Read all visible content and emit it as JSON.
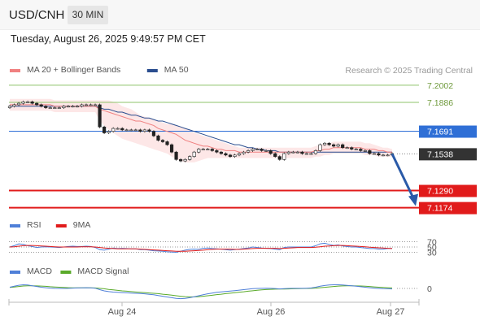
{
  "header": {
    "symbol": "USD/CNH",
    "timeframe": "30 MIN",
    "timestamp": "Tuesday, August 26, 2025 9:49:57 PM CET"
  },
  "colors": {
    "ma20": "#f08080",
    "ma50": "#2a4d8f",
    "bollinger_band": "#fde3e3",
    "green_level": "#8dc36a",
    "blue_level": "#2f6fd6",
    "red_level": "#e11b1b",
    "price_tag": "#333333",
    "rsi": "#4f7fd8",
    "rsi_ma": "#e11b1b",
    "macd": "#4f7fd8",
    "macd_signal": "#5aaa2a",
    "arrow": "#2a5aa8"
  },
  "chart_data": [
    {
      "type": "line",
      "name": "price",
      "legend": [
        "MA 20 + Bollinger Bands",
        "MA 50"
      ],
      "copyright": "Research © 2025 Trading Central",
      "x_ticks": [
        "Aug 24",
        "Aug 26",
        "Aug 27"
      ],
      "ylim": [
        7.115,
        7.204
      ],
      "levels": [
        {
          "value": 7.2002,
          "label": "7.2002",
          "kind": "green"
        },
        {
          "value": 7.1886,
          "label": "7.1886",
          "kind": "green"
        },
        {
          "value": 7.1691,
          "label": "7.1691",
          "kind": "blue"
        },
        {
          "value": 7.1538,
          "label": "7.1538",
          "kind": "current"
        },
        {
          "value": 7.129,
          "label": "7.1290",
          "kind": "red"
        },
        {
          "value": 7.1174,
          "label": "7.1174",
          "kind": "red"
        }
      ],
      "close": [
        7.186,
        7.187,
        7.188,
        7.189,
        7.189,
        7.188,
        7.187,
        7.186,
        7.185,
        7.185,
        7.185,
        7.185,
        7.186,
        7.186,
        7.186,
        7.186,
        7.187,
        7.187,
        7.187,
        7.187,
        7.172,
        7.168,
        7.169,
        7.171,
        7.171,
        7.17,
        7.17,
        7.17,
        7.17,
        7.169,
        7.17,
        7.169,
        7.166,
        7.163,
        7.162,
        7.16,
        7.155,
        7.15,
        7.149,
        7.15,
        7.152,
        7.155,
        7.157,
        7.157,
        7.157,
        7.156,
        7.155,
        7.154,
        7.153,
        7.152,
        7.153,
        7.154,
        7.155,
        7.156,
        7.157,
        7.157,
        7.156,
        7.156,
        7.154,
        7.152,
        7.15,
        7.154,
        7.155,
        7.155,
        7.155,
        7.154,
        7.154,
        7.154,
        7.156,
        7.16,
        7.161,
        7.16,
        7.159,
        7.16,
        7.158,
        7.158,
        7.157,
        7.157,
        7.156,
        7.156,
        7.154,
        7.154,
        7.153,
        7.153,
        7.153,
        7.154
      ],
      "ma20": [
        7.187,
        7.187,
        7.187,
        7.187,
        7.187,
        7.187,
        7.187,
        7.187,
        7.187,
        7.187,
        7.186,
        7.186,
        7.186,
        7.186,
        7.186,
        7.186,
        7.186,
        7.186,
        7.186,
        7.186,
        7.184,
        7.183,
        7.182,
        7.181,
        7.18,
        7.179,
        7.178,
        7.177,
        7.176,
        7.176,
        7.175,
        7.174,
        7.173,
        7.171,
        7.17,
        7.169,
        7.168,
        7.167,
        7.165,
        7.163,
        7.162,
        7.161,
        7.16,
        7.159,
        7.159,
        7.158,
        7.157,
        7.157,
        7.156,
        7.156,
        7.156,
        7.155,
        7.155,
        7.155,
        7.155,
        7.155,
        7.155,
        7.155,
        7.155,
        7.155,
        7.155,
        7.155,
        7.155,
        7.155,
        7.155,
        7.155,
        7.155,
        7.155,
        7.156,
        7.156,
        7.157,
        7.157,
        7.158,
        7.158,
        7.158,
        7.158,
        7.158,
        7.158,
        7.158,
        7.157,
        7.157,
        7.157,
        7.156,
        7.156,
        7.155,
        7.155
      ],
      "bb_upper": [
        7.191,
        7.191,
        7.191,
        7.191,
        7.191,
        7.191,
        7.191,
        7.191,
        7.191,
        7.191,
        7.19,
        7.19,
        7.19,
        7.19,
        7.19,
        7.19,
        7.19,
        7.19,
        7.19,
        7.19,
        7.19,
        7.19,
        7.19,
        7.189,
        7.188,
        7.186,
        7.185,
        7.184,
        7.182,
        7.18,
        7.179,
        7.178,
        7.177,
        7.176,
        7.175,
        7.174,
        7.174,
        7.173,
        7.172,
        7.171,
        7.17,
        7.168,
        7.167,
        7.166,
        7.165,
        7.164,
        7.163,
        7.162,
        7.161,
        7.16,
        7.159,
        7.158,
        7.158,
        7.158,
        7.158,
        7.158,
        7.158,
        7.158,
        7.158,
        7.158,
        7.158,
        7.158,
        7.158,
        7.158,
        7.158,
        7.158,
        7.158,
        7.158,
        7.159,
        7.16,
        7.161,
        7.161,
        7.162,
        7.162,
        7.162,
        7.162,
        7.162,
        7.162,
        7.162,
        7.161,
        7.161,
        7.16,
        7.159,
        7.158,
        7.158,
        7.157
      ],
      "bb_lower": [
        7.183,
        7.183,
        7.183,
        7.183,
        7.183,
        7.183,
        7.183,
        7.183,
        7.183,
        7.183,
        7.182,
        7.182,
        7.182,
        7.182,
        7.182,
        7.182,
        7.182,
        7.182,
        7.182,
        7.182,
        7.176,
        7.173,
        7.17,
        7.168,
        7.166,
        7.164,
        7.163,
        7.162,
        7.161,
        7.16,
        7.159,
        7.158,
        7.157,
        7.156,
        7.155,
        7.154,
        7.152,
        7.15,
        7.149,
        7.148,
        7.148,
        7.148,
        7.149,
        7.15,
        7.151,
        7.151,
        7.151,
        7.151,
        7.151,
        7.151,
        7.151,
        7.151,
        7.151,
        7.151,
        7.151,
        7.151,
        7.151,
        7.151,
        7.151,
        7.151,
        7.151,
        7.151,
        7.151,
        7.151,
        7.151,
        7.151,
        7.151,
        7.151,
        7.152,
        7.152,
        7.153,
        7.153,
        7.154,
        7.154,
        7.154,
        7.154,
        7.154,
        7.154,
        7.154,
        7.153,
        7.153,
        7.153,
        7.152,
        7.152,
        7.152,
        7.152
      ],
      "ma50": [
        7.186,
        7.186,
        7.186,
        7.186,
        7.186,
        7.186,
        7.186,
        7.186,
        7.186,
        7.186,
        7.186,
        7.186,
        7.186,
        7.186,
        7.186,
        7.186,
        7.186,
        7.186,
        7.186,
        7.186,
        7.185,
        7.184,
        7.184,
        7.183,
        7.182,
        7.182,
        7.181,
        7.18,
        7.18,
        7.179,
        7.178,
        7.178,
        7.177,
        7.176,
        7.176,
        7.175,
        7.174,
        7.173,
        7.172,
        7.171,
        7.17,
        7.169,
        7.168,
        7.167,
        7.166,
        7.165,
        7.164,
        7.163,
        7.162,
        7.161,
        7.16,
        7.16,
        7.159,
        7.158,
        7.158,
        7.157,
        7.157,
        7.156,
        7.156,
        7.156,
        7.155,
        7.155,
        7.155,
        7.155,
        7.155,
        7.155,
        7.155,
        7.155,
        7.155,
        7.155,
        7.155,
        7.155,
        7.155,
        7.155,
        7.155,
        7.155,
        7.155,
        7.155,
        7.155,
        7.155,
        7.155,
        7.155,
        7.155,
        7.155,
        7.155,
        7.155
      ],
      "forecast_arrow": {
        "from": 7.1538,
        "to": 7.1174
      }
    },
    {
      "type": "line",
      "name": "rsi",
      "legend": [
        "RSI",
        "9MA"
      ],
      "levels": [
        70,
        50,
        30
      ],
      "ylim": [
        10,
        90
      ],
      "rsi": [
        50,
        55,
        62,
        60,
        55,
        52,
        48,
        50,
        51,
        50,
        49,
        48,
        50,
        52,
        53,
        52,
        52,
        53,
        52,
        48,
        40,
        38,
        42,
        46,
        44,
        45,
        44,
        43,
        43,
        40,
        40,
        38,
        36,
        35,
        34,
        32,
        31,
        30,
        34,
        38,
        41,
        42,
        41,
        45,
        46,
        44,
        43,
        42,
        40,
        38,
        40,
        42,
        44,
        46,
        50,
        48,
        46,
        45,
        44,
        42,
        40,
        48,
        50,
        50,
        50,
        50,
        50,
        50,
        55,
        62,
        64,
        60,
        56,
        58,
        54,
        52,
        50,
        50,
        48,
        46,
        44,
        44,
        42,
        42,
        44,
        45
      ],
      "ma9": [
        50,
        51,
        53,
        55,
        56,
        56,
        55,
        54,
        53,
        52,
        51,
        50,
        50,
        50,
        50,
        50,
        51,
        51,
        51,
        50,
        48,
        46,
        45,
        44,
        43,
        43,
        43,
        43,
        43,
        42,
        41,
        40,
        39,
        38,
        37,
        36,
        35,
        34,
        34,
        34,
        35,
        36,
        37,
        38,
        40,
        41,
        42,
        42,
        42,
        42,
        41,
        41,
        42,
        43,
        44,
        45,
        45,
        45,
        45,
        45,
        44,
        45,
        46,
        47,
        48,
        48,
        48,
        48,
        49,
        51,
        53,
        54,
        55,
        56,
        56,
        55,
        54,
        53,
        52,
        51,
        49,
        48,
        47,
        46,
        45,
        44
      ]
    },
    {
      "type": "line",
      "name": "macd",
      "legend": [
        "MACD",
        "MACD Signal"
      ],
      "levels": [
        0
      ],
      "ylim": [
        -1,
        1
      ],
      "macd": [
        0.1,
        0.18,
        0.26,
        0.3,
        0.28,
        0.22,
        0.16,
        0.1,
        0.06,
        0.03,
        0.01,
        0.0,
        0.0,
        0.01,
        0.03,
        0.04,
        0.05,
        0.06,
        0.05,
        0.02,
        -0.1,
        -0.2,
        -0.26,
        -0.3,
        -0.32,
        -0.34,
        -0.36,
        -0.38,
        -0.4,
        -0.42,
        -0.44,
        -0.48,
        -0.52,
        -0.58,
        -0.64,
        -0.7,
        -0.76,
        -0.82,
        -0.84,
        -0.82,
        -0.76,
        -0.68,
        -0.6,
        -0.52,
        -0.44,
        -0.38,
        -0.32,
        -0.28,
        -0.25,
        -0.22,
        -0.18,
        -0.14,
        -0.1,
        -0.06,
        -0.02,
        0.0,
        0.01,
        0.02,
        0.01,
        -0.01,
        -0.04,
        -0.02,
        0.0,
        0.01,
        0.01,
        0.01,
        0.02,
        0.04,
        0.1,
        0.18,
        0.24,
        0.28,
        0.3,
        0.3,
        0.28,
        0.25,
        0.22,
        0.18,
        0.14,
        0.1,
        0.06,
        0.03,
        0.0,
        -0.02,
        -0.03,
        -0.04
      ],
      "signal": [
        0.08,
        0.12,
        0.16,
        0.2,
        0.22,
        0.22,
        0.21,
        0.19,
        0.17,
        0.14,
        0.12,
        0.1,
        0.08,
        0.06,
        0.05,
        0.05,
        0.05,
        0.05,
        0.05,
        0.04,
        0.01,
        -0.03,
        -0.08,
        -0.12,
        -0.16,
        -0.2,
        -0.23,
        -0.26,
        -0.29,
        -0.32,
        -0.34,
        -0.37,
        -0.4,
        -0.43,
        -0.47,
        -0.51,
        -0.55,
        -0.6,
        -0.64,
        -0.67,
        -0.69,
        -0.69,
        -0.67,
        -0.64,
        -0.6,
        -0.56,
        -0.51,
        -0.47,
        -0.43,
        -0.39,
        -0.35,
        -0.31,
        -0.27,
        -0.23,
        -0.19,
        -0.15,
        -0.12,
        -0.09,
        -0.07,
        -0.06,
        -0.05,
        -0.05,
        -0.04,
        -0.03,
        -0.02,
        -0.01,
        0.0,
        0.01,
        0.03,
        0.06,
        0.09,
        0.13,
        0.16,
        0.19,
        0.21,
        0.22,
        0.22,
        0.21,
        0.2,
        0.18,
        0.16,
        0.13,
        0.1,
        0.08,
        0.06,
        0.04
      ]
    }
  ]
}
